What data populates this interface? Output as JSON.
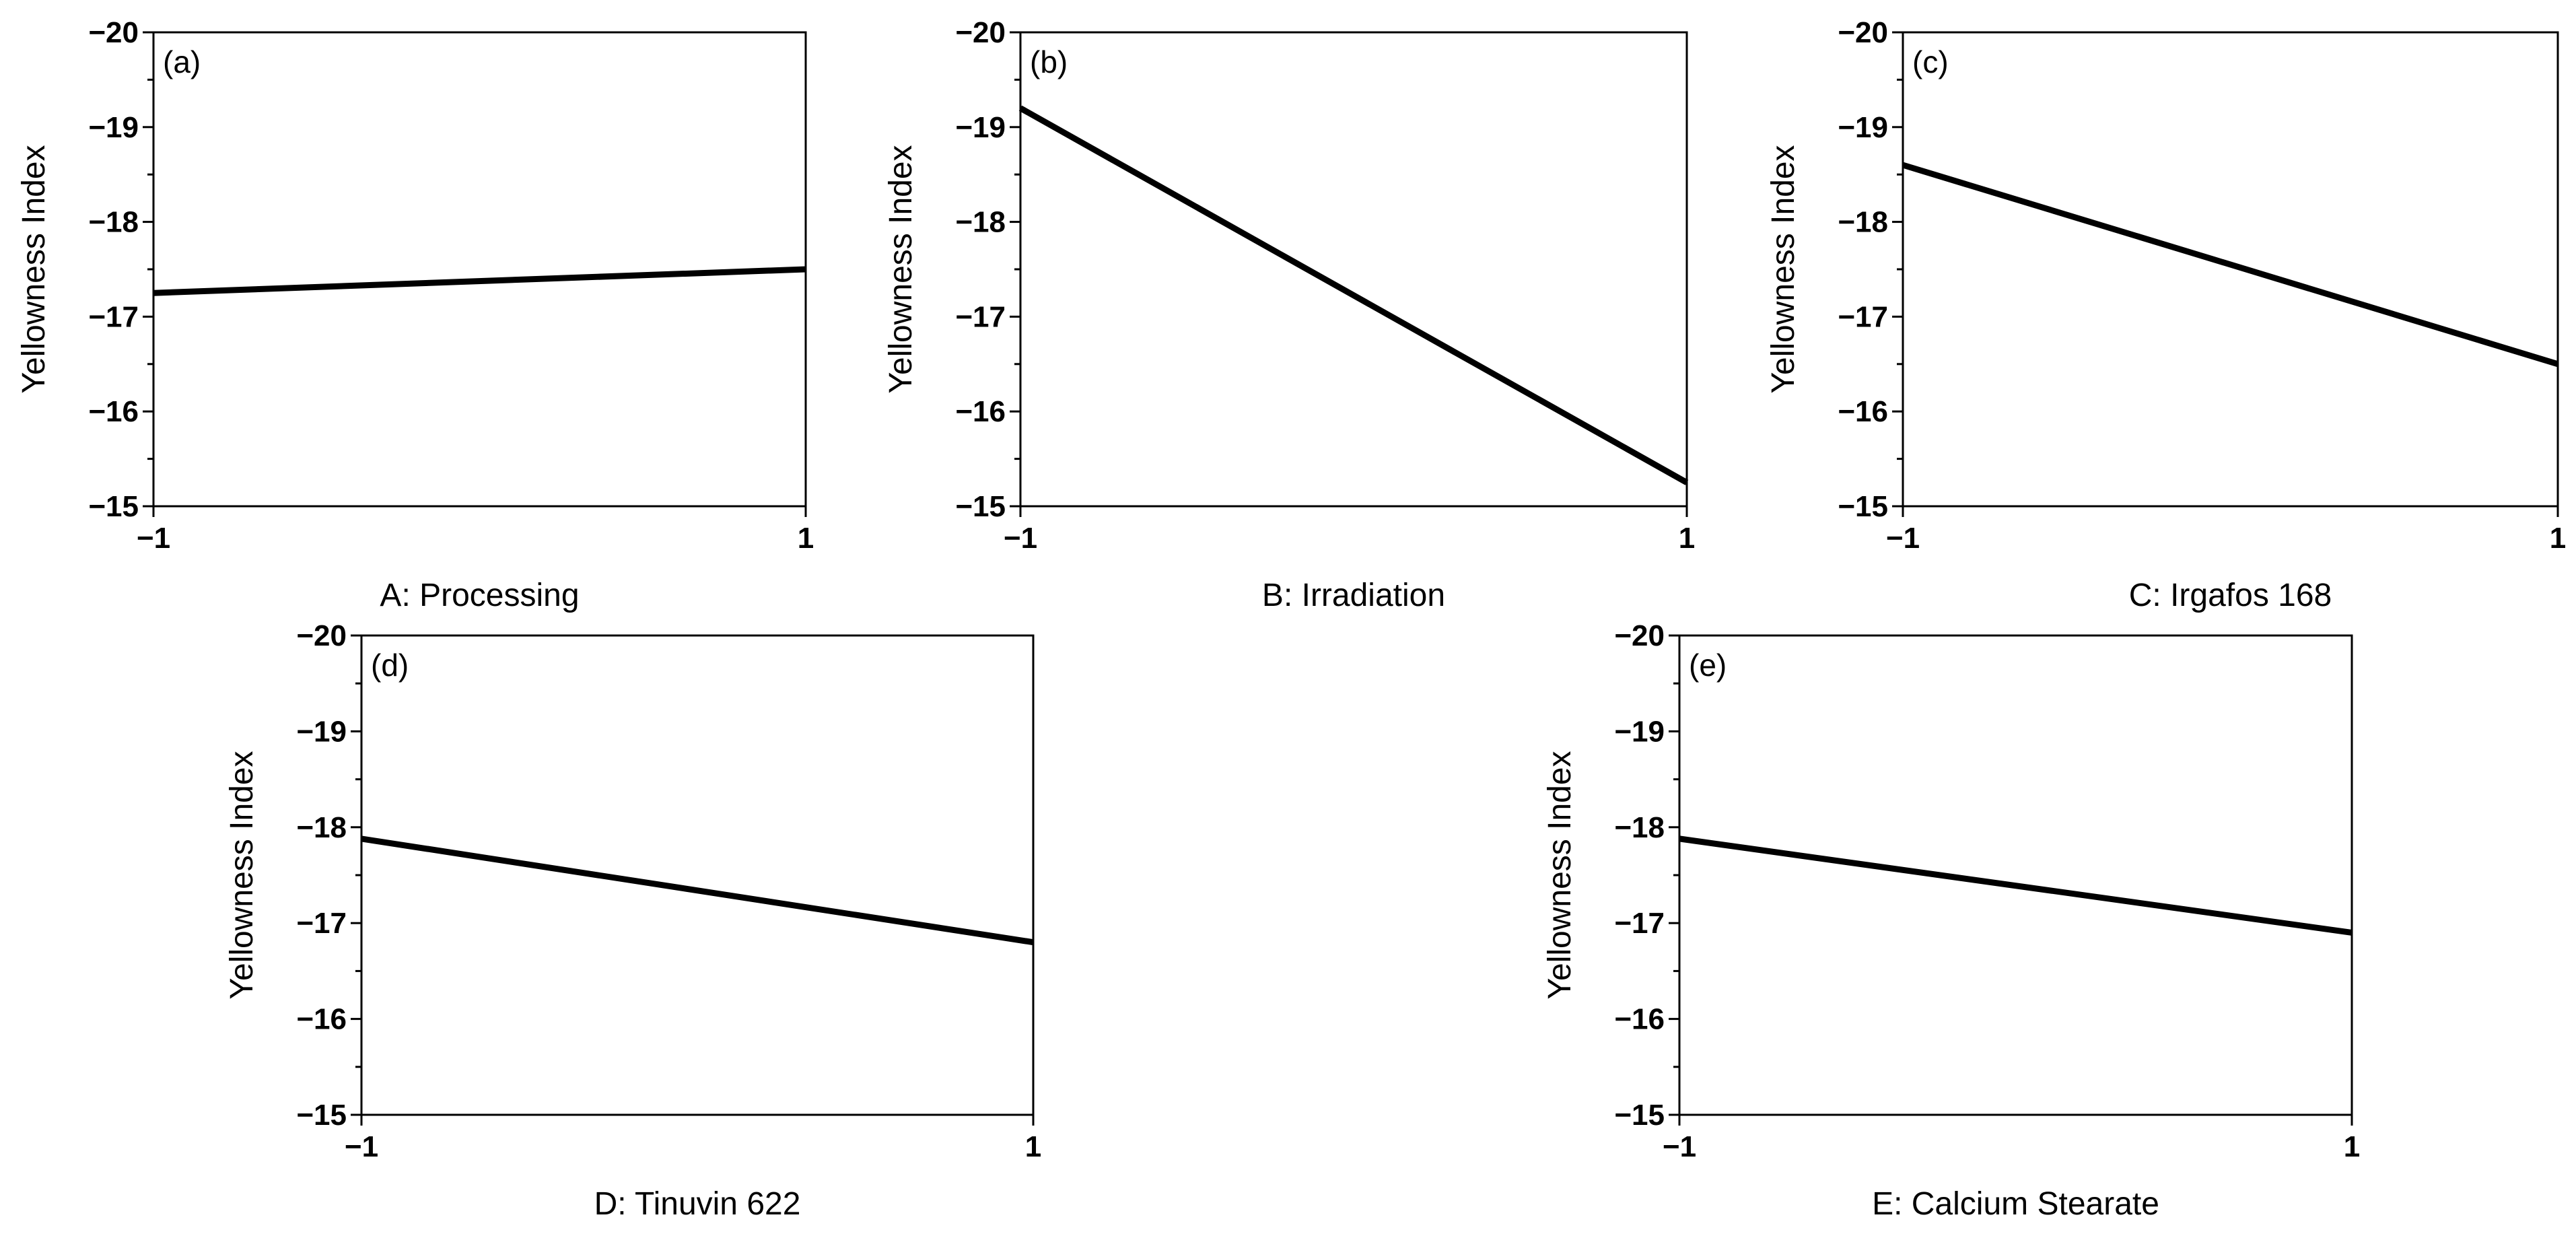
{
  "chart_data": [
    {
      "type": "line",
      "panel_label": "(a)",
      "xlabel": "A: Processing",
      "ylabel": "Yellowness Index",
      "x": [
        -1,
        1
      ],
      "xticks": [
        "−1",
        "1"
      ],
      "yticks": [
        "−20",
        "−19",
        "−18",
        "−17",
        "−16",
        "−15"
      ],
      "ylim": [
        -20,
        -15
      ],
      "y_axis_inverted": true,
      "series": [
        {
          "values": [
            -17.25,
            -17.5
          ]
        }
      ],
      "grid": false
    },
    {
      "type": "line",
      "panel_label": "(b)",
      "xlabel": "B: Irradiation",
      "ylabel": "Yellowness Index",
      "x": [
        -1,
        1
      ],
      "xticks": [
        "−1",
        "1"
      ],
      "yticks": [
        "−20",
        "−19",
        "−18",
        "−17",
        "−16",
        "−15"
      ],
      "ylim": [
        -20,
        -15
      ],
      "y_axis_inverted": true,
      "series": [
        {
          "values": [
            -19.2,
            -15.25
          ]
        }
      ],
      "grid": false
    },
    {
      "type": "line",
      "panel_label": "(c)",
      "xlabel": "C: Irgafos 168",
      "ylabel": "Yellowness Index",
      "x": [
        -1,
        1
      ],
      "xticks": [
        "−1",
        "1"
      ],
      "yticks": [
        "−20",
        "−19",
        "−18",
        "−17",
        "−16",
        "−15"
      ],
      "ylim": [
        -20,
        -15
      ],
      "y_axis_inverted": true,
      "series": [
        {
          "values": [
            -18.6,
            -16.5
          ]
        }
      ],
      "grid": false
    },
    {
      "type": "line",
      "panel_label": "(d)",
      "xlabel": "D: Tinuvin 622",
      "ylabel": "Yellowness Index",
      "x": [
        -1,
        1
      ],
      "xticks": [
        "−1",
        "1"
      ],
      "yticks": [
        "−20",
        "−19",
        "−18",
        "−17",
        "−16",
        "−15"
      ],
      "ylim": [
        -20,
        -15
      ],
      "y_axis_inverted": true,
      "series": [
        {
          "values": [
            -17.88,
            -16.8
          ]
        }
      ],
      "grid": false
    },
    {
      "type": "line",
      "panel_label": "(e)",
      "xlabel": "E: Calcium Stearate",
      "ylabel": "Yellowness Index",
      "x": [
        -1,
        1
      ],
      "xticks": [
        "−1",
        "1"
      ],
      "yticks": [
        "−20",
        "−19",
        "−18",
        "−17",
        "−16",
        "−15"
      ],
      "ylim": [
        -20,
        -15
      ],
      "y_axis_inverted": true,
      "series": [
        {
          "values": [
            -17.88,
            -16.9
          ]
        }
      ],
      "grid": false
    }
  ]
}
